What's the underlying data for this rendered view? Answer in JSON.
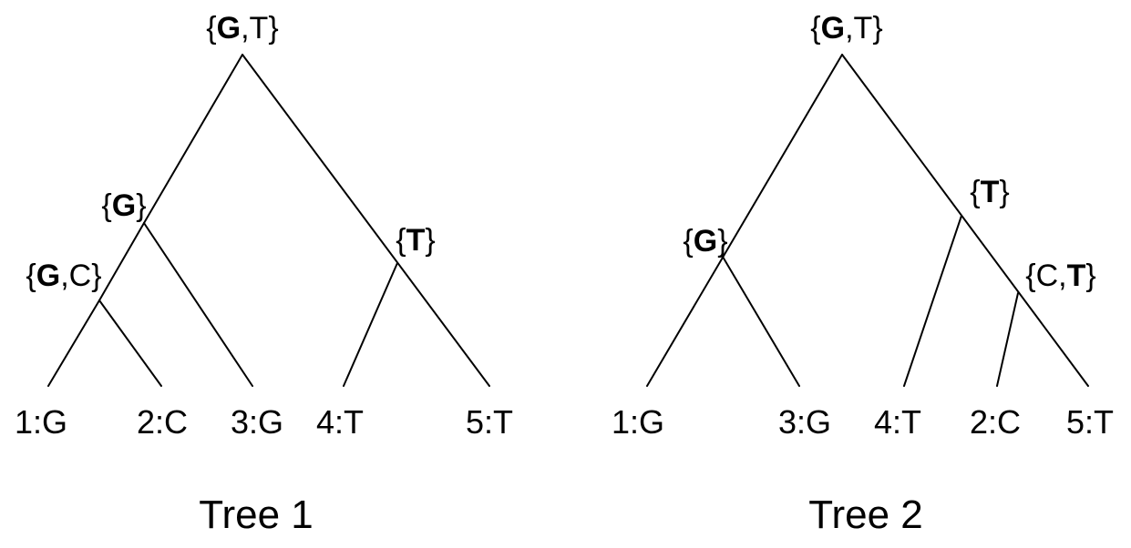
{
  "trees": [
    {
      "title": "Tree 1",
      "leaves": [
        "1:G",
        "2:C",
        "3:G",
        "4:T",
        "5:T"
      ],
      "nodes": {
        "root": {
          "parts": [
            {
              "text": "{",
              "bold": false
            },
            {
              "text": "G",
              "bold": true
            },
            {
              "text": ",T}",
              "bold": false
            }
          ]
        },
        "g": {
          "parts": [
            {
              "text": "{",
              "bold": false
            },
            {
              "text": "G",
              "bold": true
            },
            {
              "text": "}",
              "bold": false
            }
          ]
        },
        "gc": {
          "parts": [
            {
              "text": "{",
              "bold": false
            },
            {
              "text": "G",
              "bold": true
            },
            {
              "text": ",C}",
              "bold": false
            }
          ]
        },
        "t": {
          "parts": [
            {
              "text": "{",
              "bold": false
            },
            {
              "text": "T",
              "bold": true
            },
            {
              "text": "}",
              "bold": false
            }
          ]
        }
      }
    },
    {
      "title": "Tree 2",
      "leaves": [
        "1:G",
        "3:G",
        "4:T",
        "2:C",
        "5:T"
      ],
      "nodes": {
        "root": {
          "parts": [
            {
              "text": "{",
              "bold": false
            },
            {
              "text": "G",
              "bold": true
            },
            {
              "text": ",T}",
              "bold": false
            }
          ]
        },
        "t": {
          "parts": [
            {
              "text": "{",
              "bold": false
            },
            {
              "text": "T",
              "bold": true
            },
            {
              "text": "}",
              "bold": false
            }
          ]
        },
        "g": {
          "parts": [
            {
              "text": "{",
              "bold": false
            },
            {
              "text": "G",
              "bold": true
            },
            {
              "text": "}",
              "bold": false
            }
          ]
        },
        "ct": {
          "parts": [
            {
              "text": "{C,",
              "bold": false
            },
            {
              "text": "T",
              "bold": true
            },
            {
              "text": "}",
              "bold": false
            }
          ]
        }
      }
    }
  ]
}
